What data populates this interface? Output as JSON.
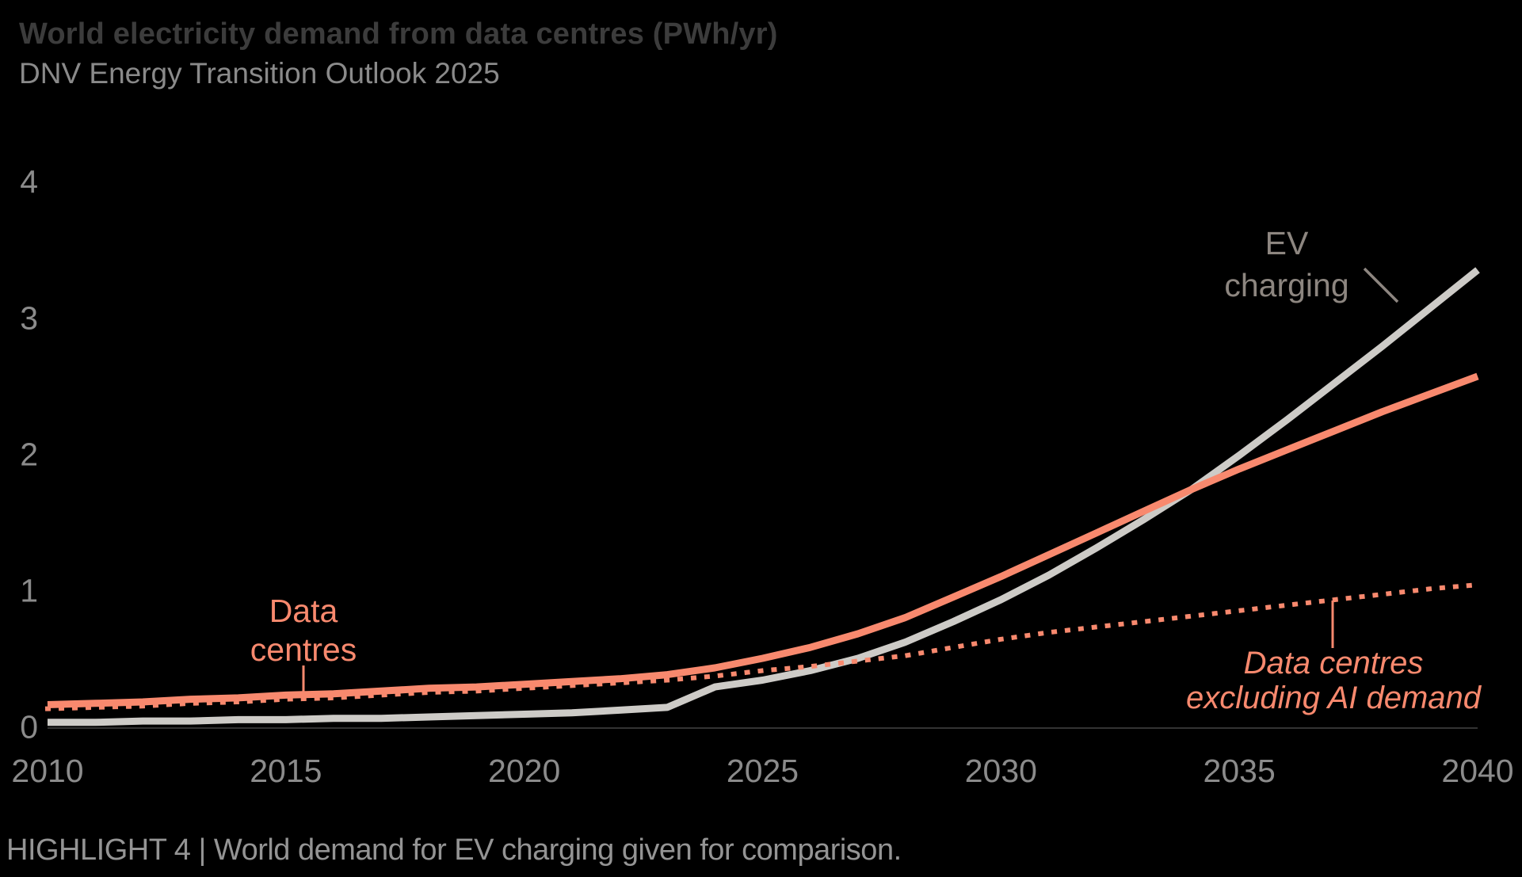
{
  "chart_data": {
    "type": "line",
    "title": "World electricity demand from data centres (PWh/yr)",
    "subtitle": "DNV Energy Transition Outlook 2025",
    "caption": "HIGHLIGHT 4 | World demand for EV charging given for comparison.",
    "background": "#000000",
    "grid": false,
    "legend": "inline-annotations",
    "xlim": [
      2010,
      2040
    ],
    "ylim": [
      0,
      4
    ],
    "x_ticks": [
      2010,
      2015,
      2020,
      2025,
      2030,
      2035,
      2040
    ],
    "y_ticks": [
      0,
      1,
      2,
      3,
      4
    ],
    "x": [
      2010,
      2011,
      2012,
      2013,
      2014,
      2015,
      2016,
      2017,
      2018,
      2019,
      2020,
      2021,
      2022,
      2023,
      2024,
      2025,
      2026,
      2027,
      2028,
      2029,
      2030,
      2031,
      2032,
      2033,
      2034,
      2035,
      2036,
      2037,
      2038,
      2039,
      2040
    ],
    "series": [
      {
        "name": "EV charging",
        "color": "#CDCBC7",
        "style": "solid",
        "values": [
          0.03,
          0.03,
          0.04,
          0.04,
          0.05,
          0.05,
          0.06,
          0.06,
          0.07,
          0.08,
          0.09,
          0.1,
          0.12,
          0.14,
          0.29,
          0.34,
          0.41,
          0.5,
          0.62,
          0.77,
          0.93,
          1.11,
          1.31,
          1.52,
          1.74,
          1.99,
          2.25,
          2.52,
          2.79,
          3.07,
          3.35
        ]
      },
      {
        "name": "Data centres",
        "color": "#F8896E",
        "style": "solid",
        "values": [
          0.16,
          0.17,
          0.18,
          0.2,
          0.21,
          0.23,
          0.24,
          0.26,
          0.28,
          0.29,
          0.31,
          0.33,
          0.35,
          0.38,
          0.43,
          0.5,
          0.58,
          0.68,
          0.8,
          0.95,
          1.1,
          1.26,
          1.42,
          1.58,
          1.74,
          1.89,
          2.03,
          2.17,
          2.31,
          2.44,
          2.57
        ]
      },
      {
        "name": "Data centres excluding AI demand",
        "color": "#F8896E",
        "style": "dotted",
        "values": [
          0.13,
          0.14,
          0.15,
          0.17,
          0.18,
          0.2,
          0.21,
          0.23,
          0.25,
          0.26,
          0.28,
          0.3,
          0.32,
          0.34,
          0.37,
          0.41,
          0.44,
          0.48,
          0.52,
          0.58,
          0.64,
          0.69,
          0.73,
          0.77,
          0.81,
          0.85,
          0.89,
          0.93,
          0.97,
          1.01,
          1.04
        ]
      }
    ],
    "annotations": {
      "ev": {
        "line1": "EV",
        "line2": "charging",
        "color": "#8D8680"
      },
      "dc": {
        "line1": "Data",
        "line2": "centres",
        "color": "#F8896E"
      },
      "dc_excl_ai": {
        "line1": "Data centres",
        "line2": "excluding AI demand",
        "color": "#F8896E"
      }
    },
    "text_colors": {
      "title": "#3C3C3C",
      "subtitle": "#8A8A8A",
      "axis_labels": "#8B8B8B",
      "caption": "#949494"
    }
  }
}
